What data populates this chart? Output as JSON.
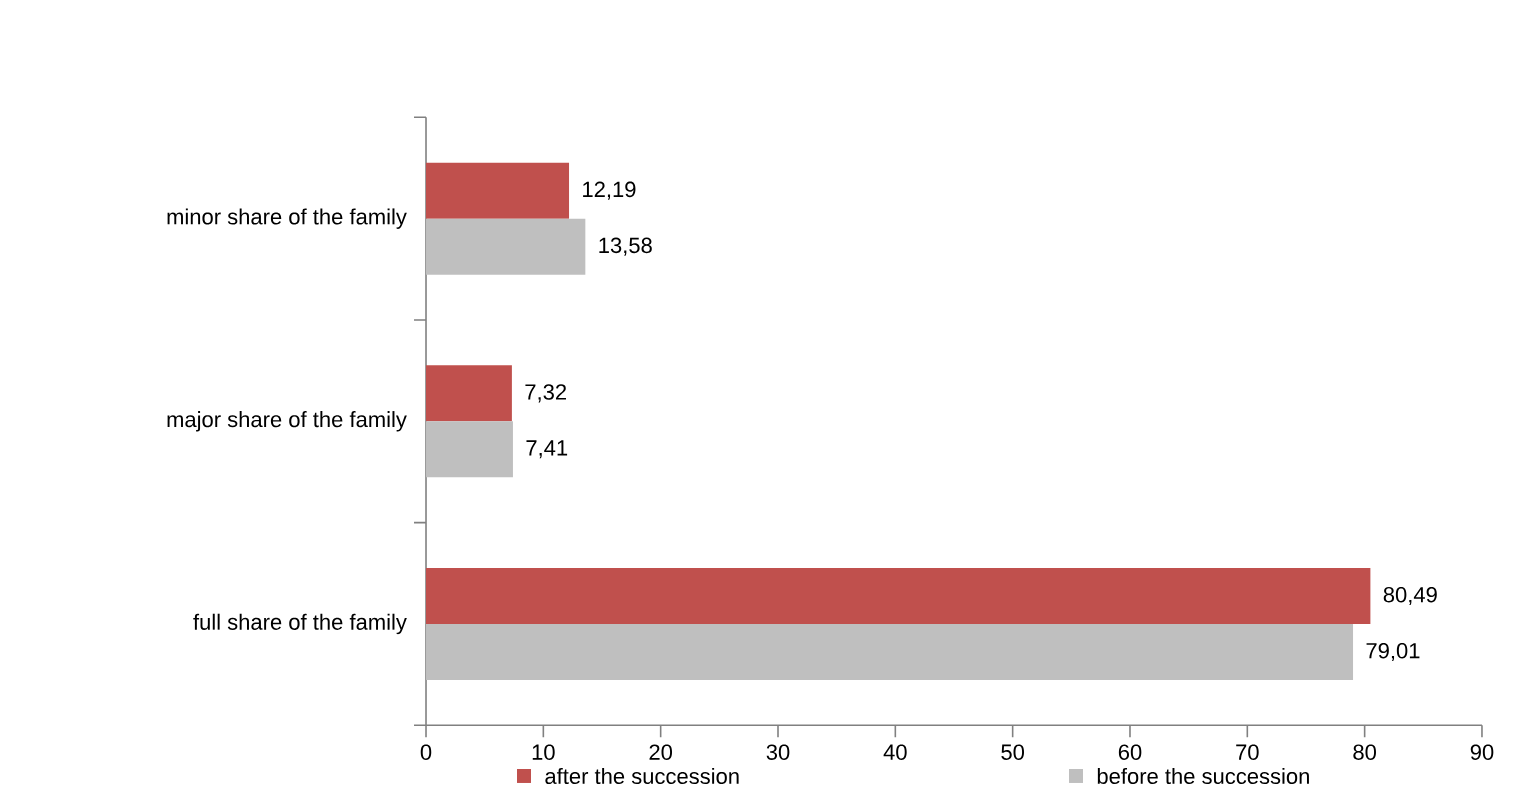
{
  "chart_data": {
    "type": "bar",
    "orientation": "horizontal",
    "categories": [
      "minor share of the family",
      "major share of the family",
      "full share of the family"
    ],
    "series": [
      {
        "name": "after the succession",
        "color": "#c0504d",
        "values": [
          12.19,
          7.32,
          80.49
        ],
        "value_labels": [
          "12,19",
          "7,32",
          "80,49"
        ]
      },
      {
        "name": "before the succession",
        "color": "#bfbfbf",
        "values": [
          13.58,
          7.41,
          79.01
        ],
        "value_labels": [
          "13,58",
          "7,41",
          "79,01"
        ]
      }
    ],
    "xlim": [
      0,
      90
    ],
    "xticks": [
      0,
      10,
      20,
      30,
      40,
      50,
      60,
      70,
      80,
      90
    ],
    "grid": false,
    "legend": "bottom"
  }
}
